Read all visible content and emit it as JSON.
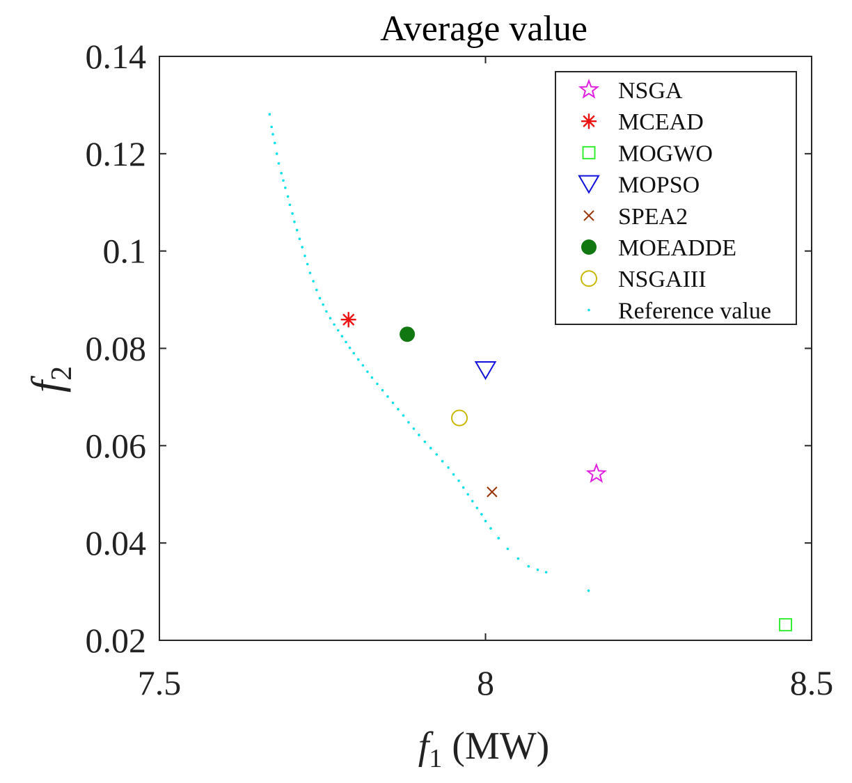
{
  "chart_data": {
    "type": "scatter",
    "title": "Average value",
    "xlabel": "f",
    "xlabel_sub": "1",
    "xlabel_unit": "(MW)",
    "ylabel": "f",
    "ylabel_sub": "2",
    "xlim": [
      7.5,
      8.5
    ],
    "ylim": [
      0.02,
      0.14
    ],
    "xticks": [
      7.5,
      8,
      8.5
    ],
    "xtick_labels": [
      "7.5",
      "8",
      "8.5"
    ],
    "yticks": [
      0.02,
      0.04,
      0.06,
      0.08,
      0.1,
      0.12,
      0.14
    ],
    "ytick_labels": [
      "0.02",
      "0.04",
      "0.06",
      "0.08",
      "0.1",
      "0.12",
      "0.14"
    ],
    "grid": false,
    "legend_position": "top-right",
    "series": [
      {
        "name": "NSGA",
        "marker": "star",
        "color": "#e020e0",
        "points": [
          [
            8.17,
            0.0542
          ]
        ]
      },
      {
        "name": "MCEAD",
        "marker": "asterisk",
        "color": "#ee1111",
        "points": [
          [
            7.79,
            0.0859
          ]
        ]
      },
      {
        "name": "MOGWO",
        "marker": "square",
        "color": "#33ee33",
        "points": [
          [
            8.46,
            0.0232
          ]
        ]
      },
      {
        "name": "MOPSO",
        "marker": "triangle-down",
        "color": "#1111dd",
        "points": [
          [
            8.0,
            0.0755
          ]
        ]
      },
      {
        "name": "SPEA2",
        "marker": "x",
        "color": "#993300",
        "points": [
          [
            8.01,
            0.0505
          ]
        ]
      },
      {
        "name": "MOEADDE",
        "marker": "filled-circle",
        "color": "#117711",
        "points": [
          [
            7.88,
            0.0829
          ]
        ]
      },
      {
        "name": "NSGAIII",
        "marker": "circle",
        "color": "#c8b800",
        "points": [
          [
            7.96,
            0.0657
          ]
        ]
      },
      {
        "name": "Reference value",
        "marker": "dot",
        "color": "#00e0e8",
        "points": [
          [
            7.669,
            0.1281
          ],
          [
            7.672,
            0.1255
          ],
          [
            7.674,
            0.124
          ],
          [
            7.677,
            0.1222
          ],
          [
            7.68,
            0.12
          ],
          [
            7.683,
            0.118
          ],
          [
            7.687,
            0.116
          ],
          [
            7.69,
            0.1145
          ],
          [
            7.693,
            0.113
          ],
          [
            7.697,
            0.1112
          ],
          [
            7.7,
            0.1095
          ],
          [
            7.704,
            0.1077
          ],
          [
            7.707,
            0.106
          ],
          [
            7.711,
            0.1043
          ],
          [
            7.715,
            0.1025
          ],
          [
            7.719,
            0.1008
          ],
          [
            7.723,
            0.099
          ],
          [
            7.727,
            0.0973
          ],
          [
            7.731,
            0.0955
          ],
          [
            7.736,
            0.0938
          ],
          [
            7.741,
            0.092
          ],
          [
            7.746,
            0.0903
          ],
          [
            7.751,
            0.089
          ],
          [
            7.756,
            0.0876
          ],
          [
            7.762,
            0.0862
          ],
          [
            7.768,
            0.0849
          ],
          [
            7.774,
            0.0837
          ],
          [
            7.78,
            0.0825
          ],
          [
            7.786,
            0.0813
          ],
          [
            7.792,
            0.0801
          ],
          [
            7.798,
            0.079
          ],
          [
            7.805,
            0.0777
          ],
          [
            7.812,
            0.0765
          ],
          [
            7.819,
            0.0752
          ],
          [
            7.826,
            0.074
          ],
          [
            7.834,
            0.0727
          ],
          [
            7.842,
            0.0714
          ],
          [
            7.85,
            0.0701
          ],
          [
            7.858,
            0.0688
          ],
          [
            7.866,
            0.0675
          ],
          [
            7.874,
            0.0662
          ],
          [
            7.882,
            0.0648
          ],
          [
            7.89,
            0.0635
          ],
          [
            7.898,
            0.0622
          ],
          [
            7.907,
            0.0608
          ],
          [
            7.916,
            0.0595
          ],
          [
            7.925,
            0.0582
          ],
          [
            7.934,
            0.0568
          ],
          [
            7.943,
            0.0555
          ],
          [
            7.951,
            0.0541
          ],
          [
            7.959,
            0.0528
          ],
          [
            7.966,
            0.0514
          ],
          [
            7.973,
            0.05
          ],
          [
            7.98,
            0.0486
          ],
          [
            7.987,
            0.0472
          ],
          [
            7.994,
            0.0459
          ],
          [
            8.0,
            0.0445
          ],
          [
            8.008,
            0.043
          ],
          [
            8.02,
            0.041
          ],
          [
            8.034,
            0.0388
          ],
          [
            8.05,
            0.0368
          ],
          [
            8.066,
            0.0352
          ],
          [
            8.08,
            0.0345
          ],
          [
            8.093,
            0.034
          ],
          [
            8.158,
            0.0302
          ]
        ]
      }
    ]
  }
}
